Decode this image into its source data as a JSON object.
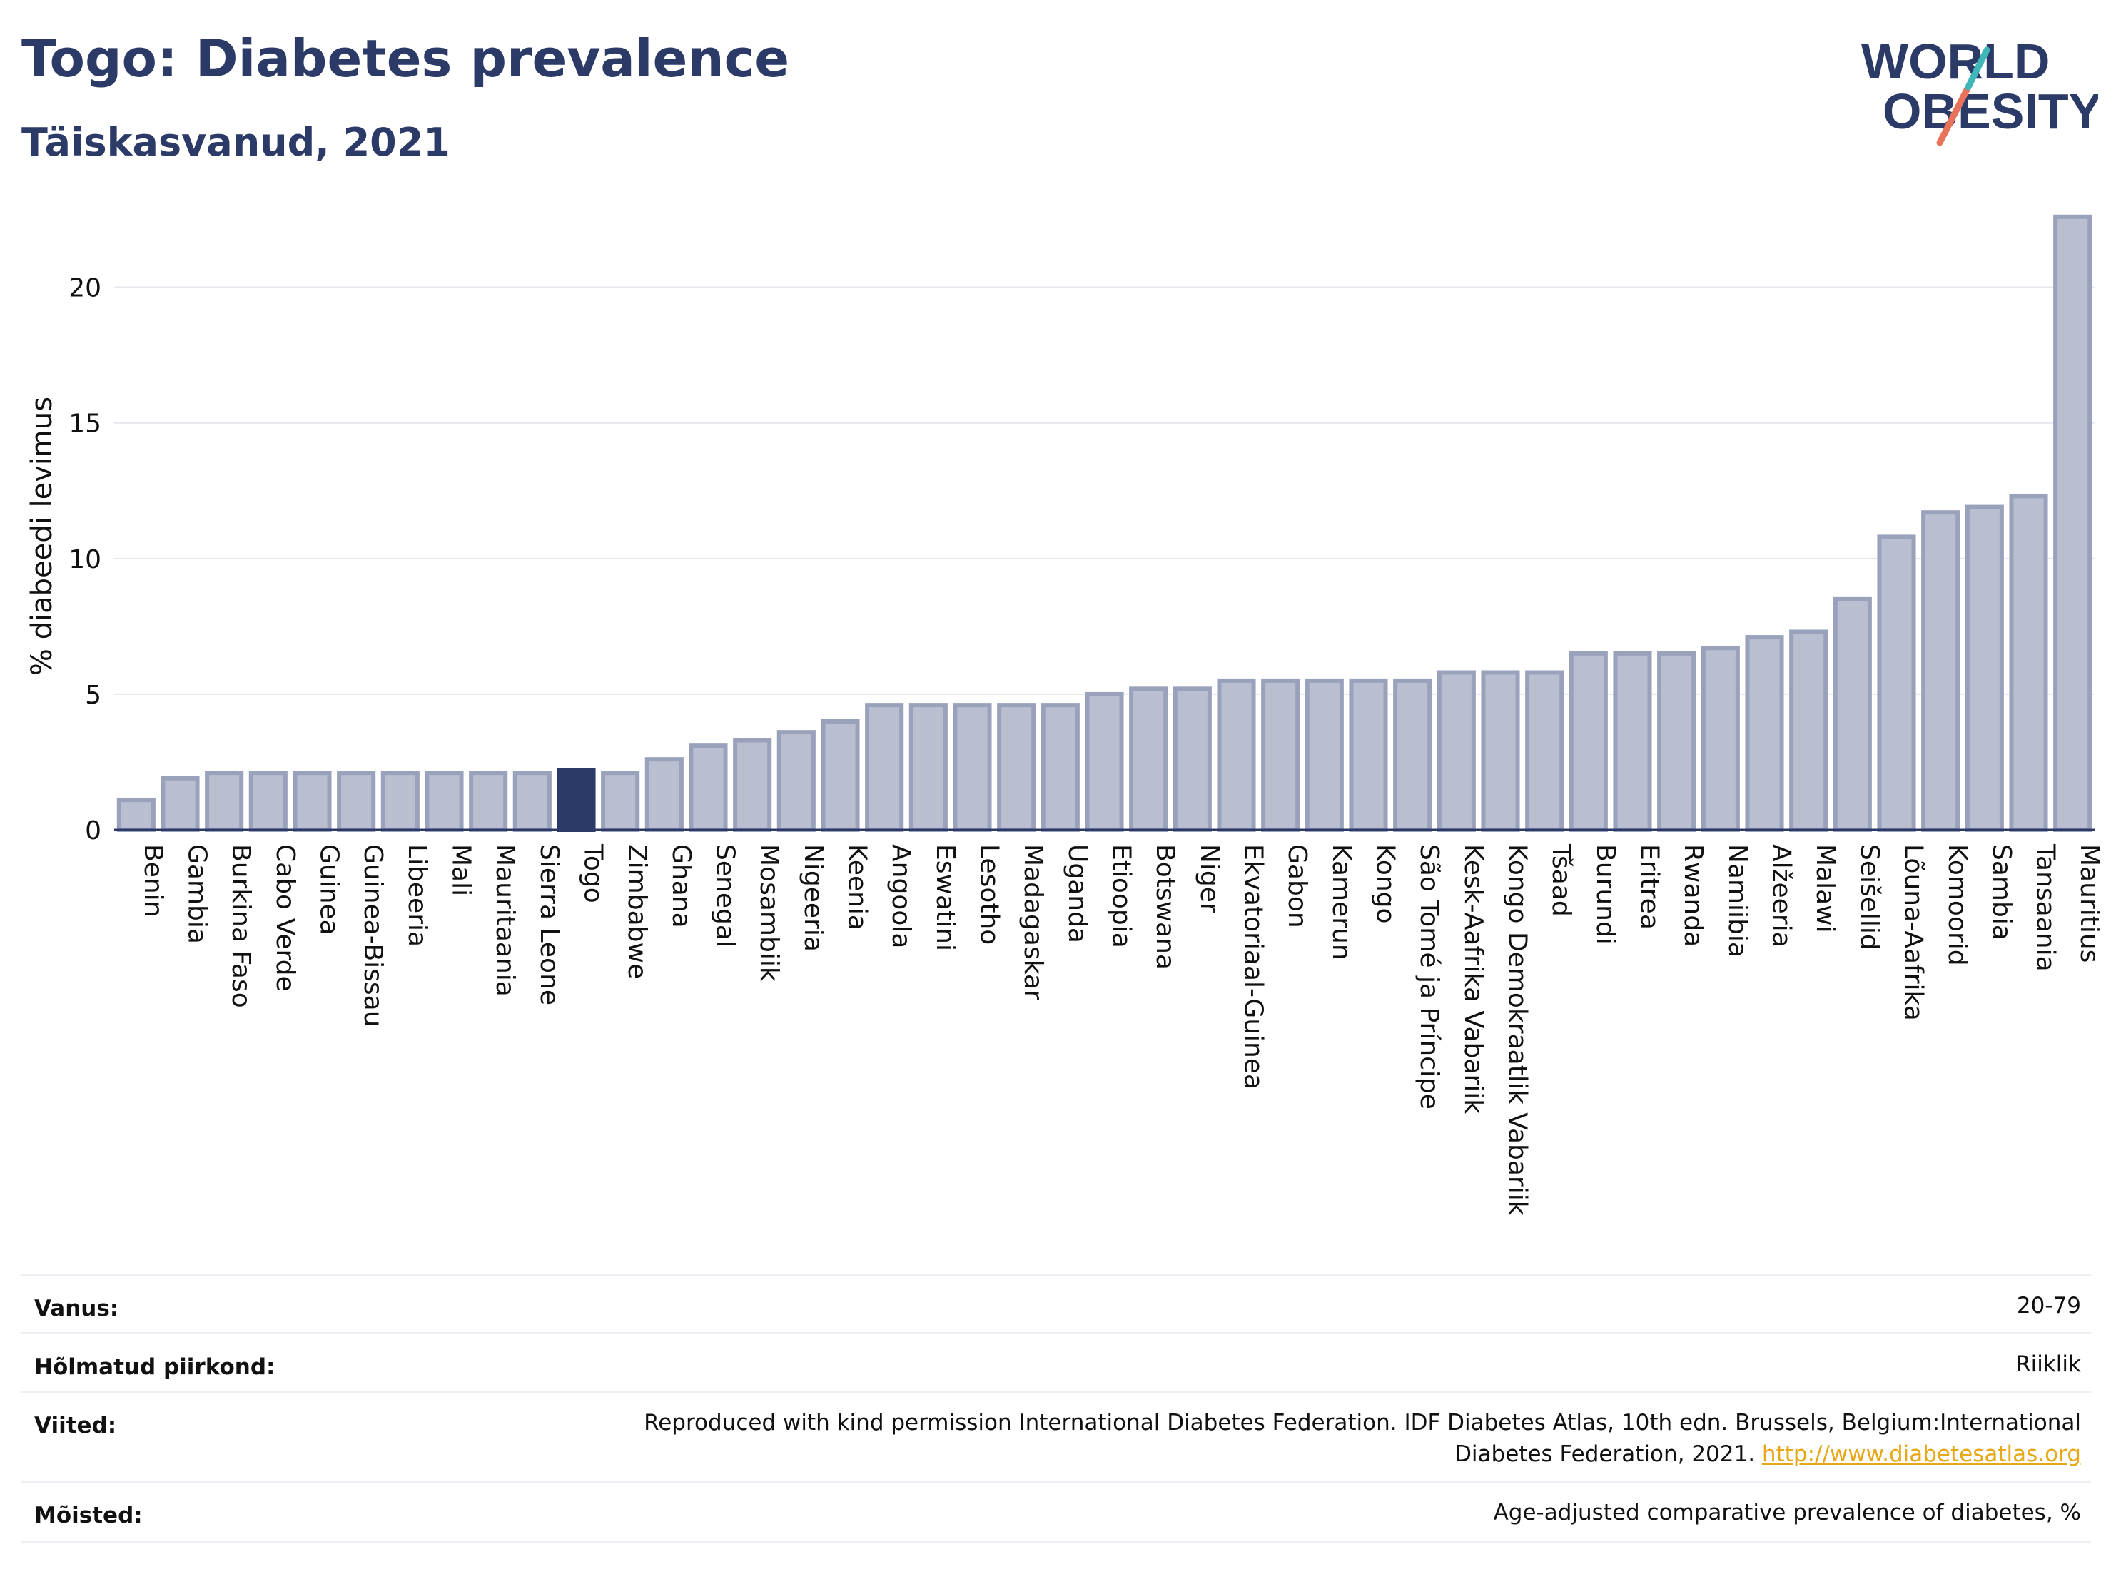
{
  "header": {
    "title": "Togo: Diabetes prevalence",
    "subtitle": "Täiskasvanud, 2021",
    "logo_line1": "WORLD",
    "logo_line2": "OBESITY"
  },
  "chart_data": {
    "type": "bar",
    "ylabel": "% diabeedi levimus",
    "ylim": [
      0,
      22.7
    ],
    "yticks": [
      0,
      5,
      10,
      15,
      20
    ],
    "grid": true,
    "highlight_category": "Togo",
    "colors": {
      "bar": "#b9bfd0",
      "bar_edge": "#9aa2bb",
      "highlight": "#2b3a67",
      "grid": "#e4e8ee"
    },
    "categories": [
      "Benin",
      "Gambia",
      "Burkina Faso",
      "Cabo Verde",
      "Guinea",
      "Guinea-Bissau",
      "Libeeria",
      "Mali",
      "Mauritaania",
      "Sierra Leone",
      "Togo",
      "Zimbabwe",
      "Ghana",
      "Senegal",
      "Mosambiik",
      "Nigeeria",
      "Keenia",
      "Angoola",
      "Eswatini",
      "Lesotho",
      "Madagaskar",
      "Uganda",
      "Etioopia",
      "Botswana",
      "Niger",
      "Ekvatoriaal-Guinea",
      "Gabon",
      "Kamerun",
      "Kongo",
      "São Tomé ja Príncipe",
      "Kesk-Aafrika Vabariik",
      "Kongo Demokraatlik Vabariik",
      "Tšaad",
      "Burundi",
      "Eritrea",
      "Rwanda",
      "Namiibia",
      "Alžeeria",
      "Malawi",
      "Seišellid",
      "Lõuna-Aafrika",
      "Komoorid",
      "Sambia",
      "Tansaania",
      "Mauritius"
    ],
    "values": [
      1.1,
      1.9,
      2.1,
      2.1,
      2.1,
      2.1,
      2.1,
      2.1,
      2.1,
      2.1,
      2.2,
      2.1,
      2.6,
      3.1,
      3.3,
      3.6,
      4.0,
      4.6,
      4.6,
      4.6,
      4.6,
      4.6,
      5.0,
      5.2,
      5.2,
      5.5,
      5.5,
      5.5,
      5.5,
      5.5,
      5.8,
      5.8,
      5.8,
      6.5,
      6.5,
      6.5,
      6.7,
      7.1,
      7.3,
      8.5,
      10.8,
      11.7,
      11.9,
      12.3,
      22.6
    ]
  },
  "meta": {
    "rows": [
      {
        "key": "Vanus:",
        "value": "20-79"
      },
      {
        "key": "Hõlmatud piirkond:",
        "value": "Riiklik"
      },
      {
        "key": "Viited:",
        "value_line1": "Reproduced with kind permission International Diabetes Federation.  IDF Diabetes Atlas, 10th edn. Brussels, Belgium:International",
        "value_line2": "Diabetes Federation, 2021. ",
        "link": "http://www.diabetesatlas.org"
      },
      {
        "key": "Mõisted:",
        "value": "Age-adjusted comparative prevalence of diabetes, %"
      }
    ]
  }
}
